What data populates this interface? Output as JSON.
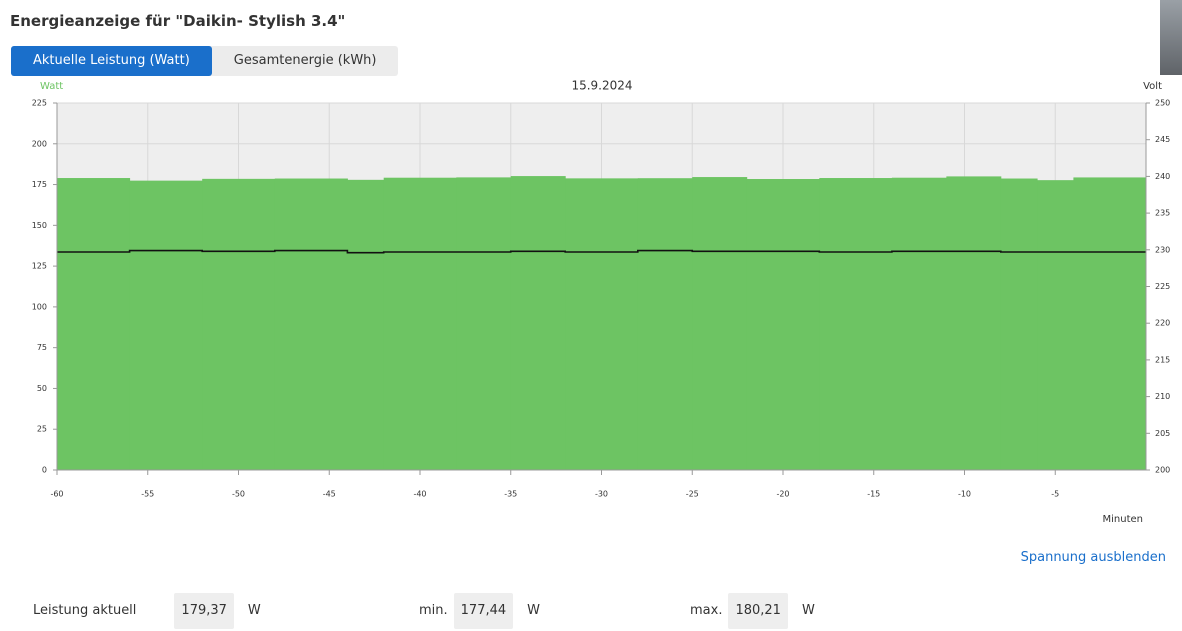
{
  "header": {
    "title": "Energieanzeige für \"Daikin- Stylish 3.4\""
  },
  "tabs": [
    {
      "label": "Aktuelle Leistung (Watt)",
      "active": true
    },
    {
      "label": "Gesamtenergie (kWh)",
      "active": false
    }
  ],
  "chart_data": {
    "type": "step-area",
    "subtitle": "15.9.2024",
    "y_label": "Watt",
    "y2_label": "Volt",
    "x_label": "Minuten",
    "x": [
      -60,
      -56,
      -52,
      -48,
      -44,
      -42,
      -38,
      -35,
      -32,
      -28,
      -25,
      -22,
      -18,
      -14,
      -11,
      -8,
      -6,
      -4
    ],
    "series": [
      {
        "name": "Watt",
        "color": "#6dc463",
        "values": [
          179,
          177.4,
          178.5,
          178.7,
          177.9,
          179.2,
          179.4,
          180.2,
          178.8,
          178.9,
          179.6,
          178.4,
          179,
          179.2,
          180,
          178.7,
          177.7,
          179.37
        ]
      },
      {
        "name": "Volt",
        "color": "#111111",
        "axis": "y2",
        "values": [
          229.7,
          229.9,
          229.8,
          229.9,
          229.6,
          229.7,
          229.7,
          229.8,
          229.7,
          229.9,
          229.8,
          229.8,
          229.7,
          229.8,
          229.8,
          229.7,
          229.7,
          229.7
        ]
      }
    ],
    "xlim": [
      -60,
      0
    ],
    "xticks": [
      -60,
      -55,
      -50,
      -45,
      -40,
      -35,
      -30,
      -25,
      -20,
      -15,
      -10,
      -5
    ],
    "ylim": [
      0,
      225
    ],
    "yticks": [
      0,
      25,
      50,
      75,
      100,
      125,
      150,
      175,
      200,
      225
    ],
    "y2lim": [
      200,
      250
    ],
    "y2ticks": [
      200,
      205,
      210,
      215,
      220,
      225,
      230,
      235,
      240,
      245,
      250
    ],
    "grid": true
  },
  "link": "Spannung ausblenden",
  "stats": [
    {
      "label": "Leistung aktuell",
      "value": "179,37",
      "unit": "W"
    },
    {
      "label": "min.",
      "value": "177,44",
      "unit": "W"
    },
    {
      "label": "max.",
      "value": "180,21",
      "unit": "W"
    }
  ]
}
